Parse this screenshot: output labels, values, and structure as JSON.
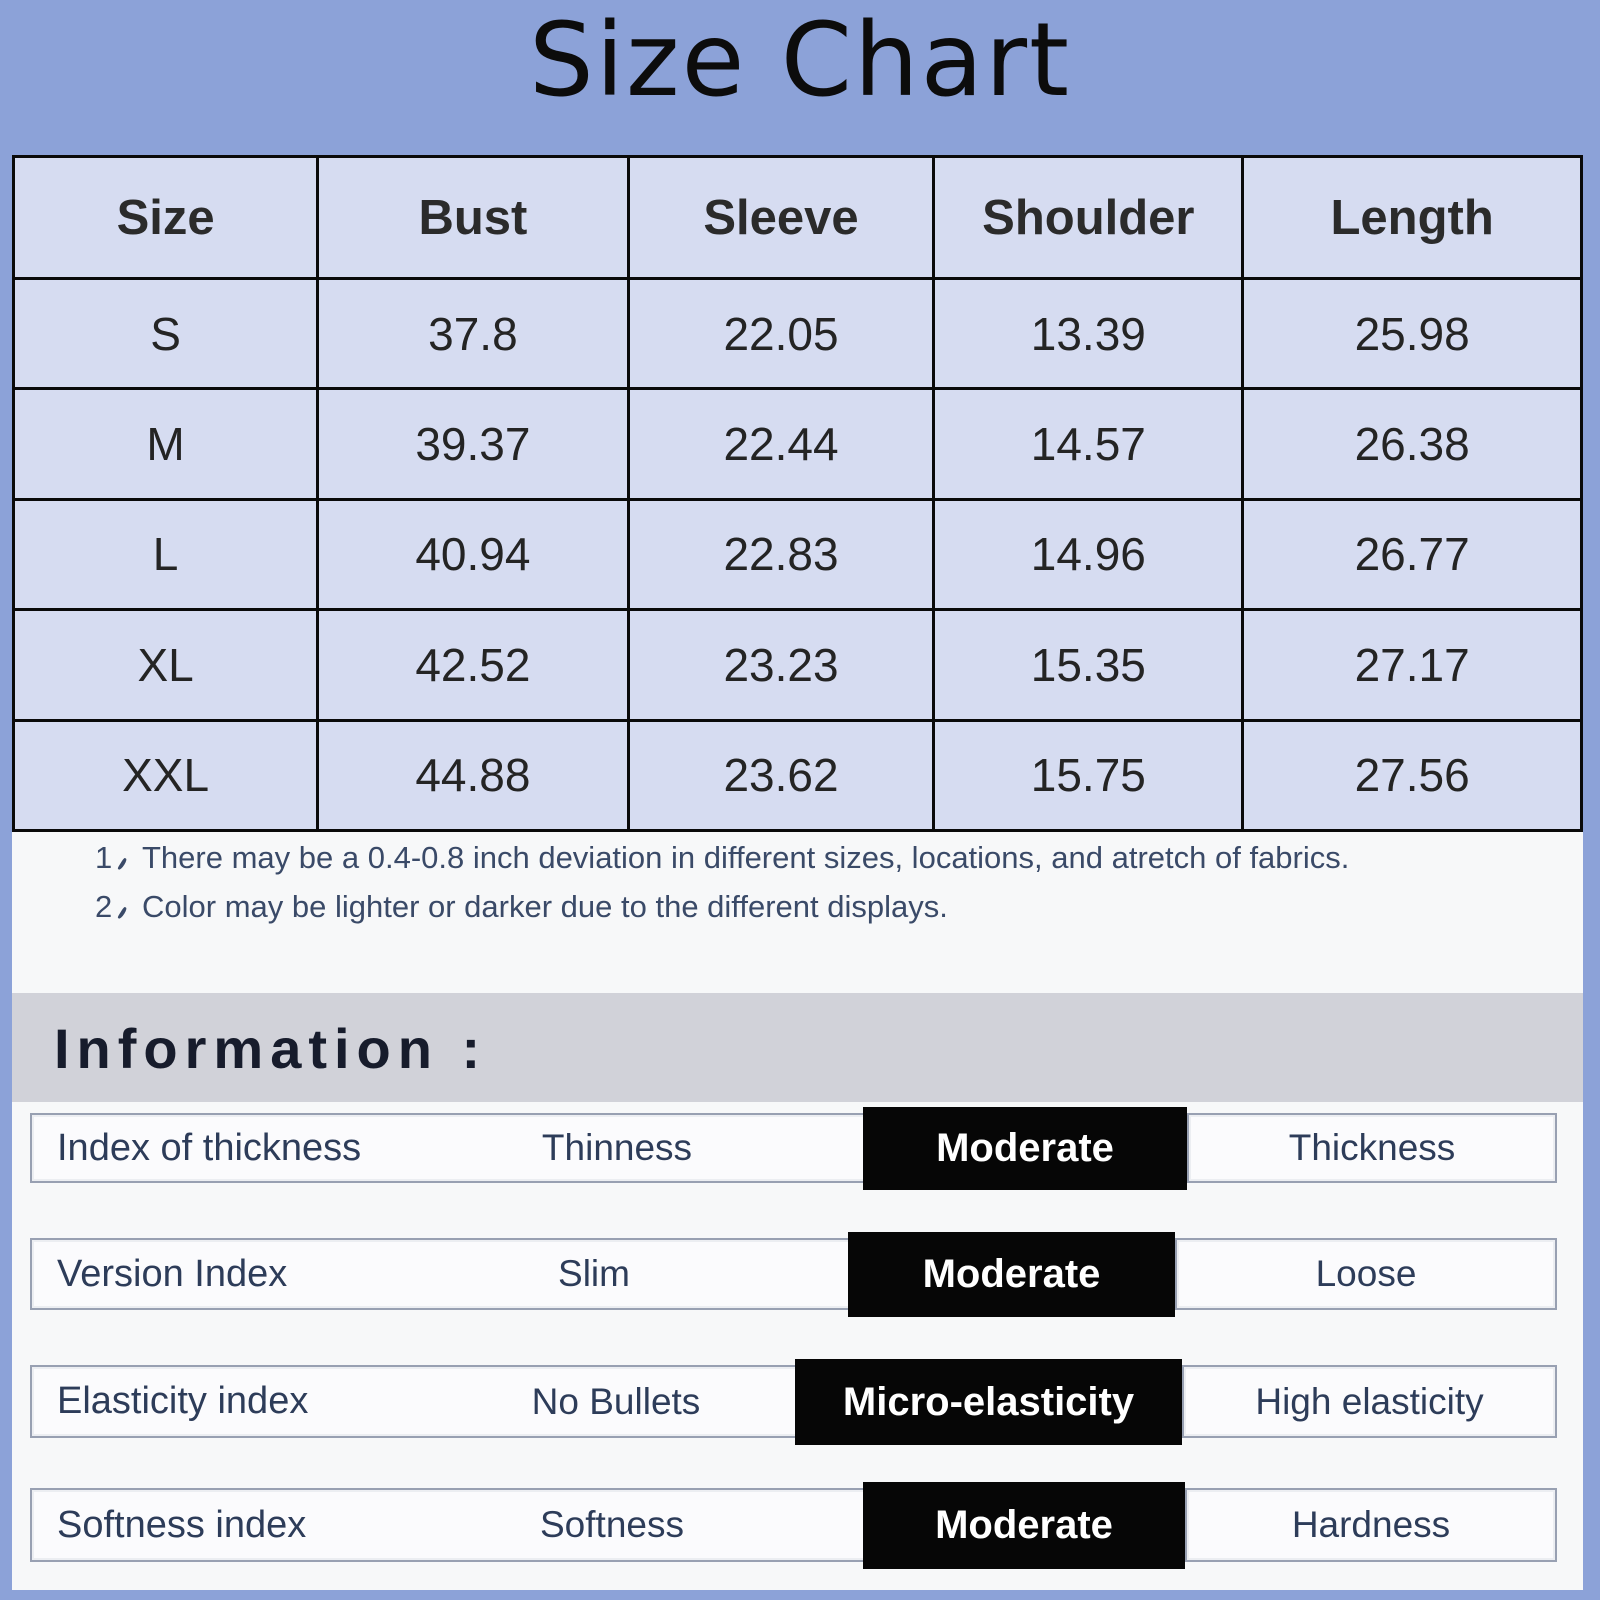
{
  "page_title": "Size Chart",
  "list_marker_glyph": "、",
  "chart_data": {
    "type": "table",
    "title": "Size Chart",
    "columns": [
      "Size",
      "Bust",
      "Sleeve",
      "Shoulder",
      "Length"
    ],
    "rows": [
      [
        "S",
        "37.8",
        "22.05",
        "13.39",
        "25.98"
      ],
      [
        "M",
        "39.37",
        "22.44",
        "14.57",
        "26.38"
      ],
      [
        "L",
        "40.94",
        "22.83",
        "14.96",
        "26.77"
      ],
      [
        "XL",
        "42.52",
        "23.23",
        "15.35",
        "27.17"
      ],
      [
        "XXL",
        "44.88",
        "23.62",
        "15.75",
        "27.56"
      ]
    ]
  },
  "notes": {
    "items": [
      {
        "number": "1",
        "text": "There may be a 0.4-0.8 inch deviation in different sizes, locations, and atretch of fabrics."
      },
      {
        "number": "2",
        "text": "Color may be lighter or darker due to the different displays."
      }
    ]
  },
  "information": {
    "heading": "Information :",
    "rows": [
      {
        "label": "Index of thickness",
        "low": "Thinness",
        "selected": "Moderate",
        "high": "Thickness"
      },
      {
        "label": "Version Index",
        "low": "Slim",
        "selected": "Moderate",
        "high": "Loose"
      },
      {
        "label": "Elasticity index",
        "low": "No Bullets",
        "selected": "Micro-elasticity",
        "high": "High elasticity"
      },
      {
        "label": "Softness index",
        "low": "Softness",
        "selected": "Moderate",
        "high": "Hardness"
      }
    ]
  },
  "colors": {
    "frame_blue": "#8CA2D8",
    "table_cell_blue": "#D6DCF1",
    "table_border": "#0a0a0a",
    "selected_chip_bg": "#060606",
    "selected_chip_text": "#FFFFFF",
    "note_text": "#3A4A68",
    "info_text": "#2D3C59",
    "info_band_gray": "#D1D2D9"
  }
}
